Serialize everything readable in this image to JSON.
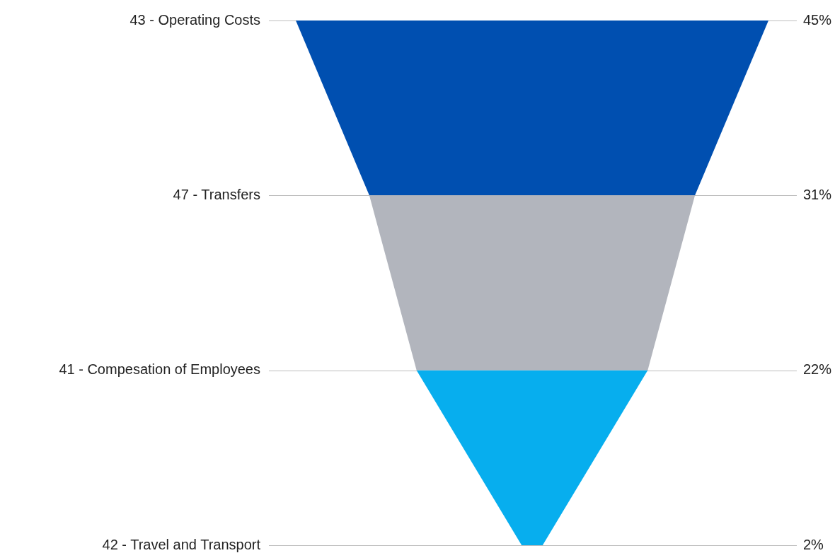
{
  "chart_data": {
    "type": "other",
    "categories": [
      "43 - Operating Costs",
      "47 - Transfers",
      "41 - Compesation of Employees",
      "42 - Travel and Transport"
    ],
    "values": [
      45,
      31,
      22,
      2
    ],
    "value_labels": [
      "45%",
      "31%",
      "22%",
      "2%"
    ],
    "colors": [
      "#004fb0",
      "#b2b5bd",
      "#07aeee",
      "#07aeee"
    ]
  }
}
